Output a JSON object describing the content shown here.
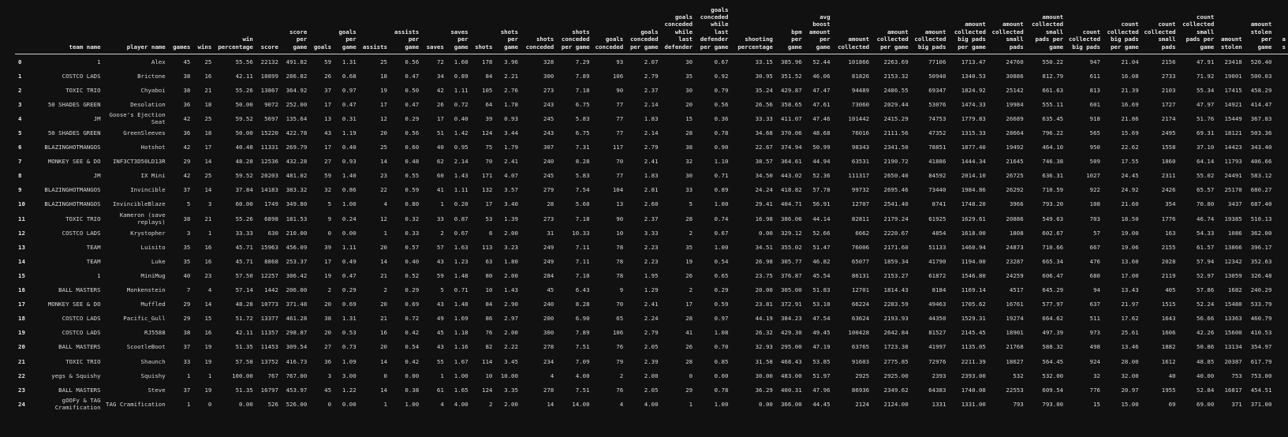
{
  "columns": [
    {
      "label": "team name",
      "w": 100
    },
    {
      "label": "player name",
      "w": 88
    },
    {
      "label": "games",
      "w": 30
    },
    {
      "label": "wins",
      "w": 25
    },
    {
      "label": "win percentage",
      "w": 49
    },
    {
      "label": "score",
      "w": 31
    },
    {
      "label": "score per game",
      "w": 35
    },
    {
      "label": "goals",
      "w": 28
    },
    {
      "label": "goals per game",
      "w": 30
    },
    {
      "label": "assists",
      "w": 36
    },
    {
      "label": "assists per game",
      "w": 38
    },
    {
      "label": "saves",
      "w": 30
    },
    {
      "label": "saves per game",
      "w": 28
    },
    {
      "label": "shots",
      "w": 28
    },
    {
      "label": "shots per game",
      "w": 32
    },
    {
      "label": "shots conceded",
      "w": 44
    },
    {
      "label": "shots conceded per game",
      "w": 44
    },
    {
      "label": "goals conceded",
      "w": 38
    },
    {
      "label": "goals conceded per game",
      "w": 42
    },
    {
      "label": "goals conceded while last defender",
      "w": 40
    },
    {
      "label": "goals conceded while last defender per game",
      "w": 44
    },
    {
      "label": "shooting percentage",
      "w": 58
    },
    {
      "label": "bpm per game",
      "w": 36
    },
    {
      "label": "avg boost amount per game",
      "w": 34
    },
    {
      "label": "amount collected",
      "w": 48
    },
    {
      "label": "amount collected per game",
      "w": 48
    },
    {
      "label": "amount collected big pads",
      "w": 44
    },
    {
      "label": "amount collected big pads per game",
      "w": 50
    },
    {
      "label": "amount collected small pads",
      "w": 44
    },
    {
      "label": "amount collected small pads per game",
      "w": 50
    },
    {
      "label": "count collected big pads",
      "w": 42
    },
    {
      "label": "count collected big pads per game",
      "w": 46
    },
    {
      "label": "count collected small pads",
      "w": 42
    },
    {
      "label": "count collected small pads per game",
      "w": 46
    },
    {
      "label": "amount stolen",
      "w": 33
    },
    {
      "label": "amount stolen per game",
      "w": 38
    },
    {
      "label": "a s",
      "w": 20
    }
  ],
  "rows": [
    {
      "idx": "0",
      "c": [
        "1",
        "Alex",
        "45",
        "25",
        "55.56",
        "22132",
        "491.82",
        "59",
        "1.31",
        "25",
        "0.56",
        "72",
        "1.60",
        "178",
        "3.96",
        "328",
        "7.29",
        "93",
        "2.07",
        "30",
        "0.67",
        "33.15",
        "385.96",
        "52.44",
        "101866",
        "2263.69",
        "77106",
        "1713.47",
        "24760",
        "550.22",
        "947",
        "21.04",
        "2156",
        "47.91",
        "23418",
        "520.40",
        ""
      ]
    },
    {
      "idx": "1",
      "c": [
        "COSTCO LADS",
        "Brictone",
        "38",
        "16",
        "42.11",
        "10899",
        "286.82",
        "26",
        "0.68",
        "18",
        "0.47",
        "34",
        "0.89",
        "84",
        "2.21",
        "300",
        "7.89",
        "106",
        "2.79",
        "35",
        "0.92",
        "30.95",
        "351.52",
        "46.06",
        "81826",
        "2153.32",
        "50940",
        "1340.53",
        "30886",
        "812.79",
        "611",
        "16.08",
        "2733",
        "71.92",
        "19001",
        "500.03",
        ""
      ]
    },
    {
      "idx": "2",
      "c": [
        "TOXIC TRIO",
        "Chyaboi",
        "38",
        "21",
        "55.26",
        "13867",
        "364.92",
        "37",
        "0.97",
        "19",
        "0.50",
        "42",
        "1.11",
        "105",
        "2.76",
        "273",
        "7.18",
        "90",
        "2.37",
        "30",
        "0.79",
        "35.24",
        "429.87",
        "47.47",
        "94489",
        "2486.55",
        "69347",
        "1824.92",
        "25142",
        "661.63",
        "813",
        "21.39",
        "2103",
        "55.34",
        "17415",
        "458.29",
        ""
      ]
    },
    {
      "idx": "3",
      "c": [
        "50 SHADES GREEN",
        "Desolation",
        "36",
        "18",
        "50.00",
        "9072",
        "252.00",
        "17",
        "0.47",
        "17",
        "0.47",
        "26",
        "0.72",
        "64",
        "1.78",
        "243",
        "6.75",
        "77",
        "2.14",
        "20",
        "0.56",
        "26.56",
        "358.65",
        "47.61",
        "73060",
        "2029.44",
        "53076",
        "1474.33",
        "19984",
        "555.11",
        "601",
        "16.69",
        "1727",
        "47.97",
        "14921",
        "414.47",
        ""
      ]
    },
    {
      "idx": "4",
      "c": [
        "JM",
        "Goose's Ejection Seat",
        "42",
        "25",
        "59.52",
        "5697",
        "135.64",
        "13",
        "0.31",
        "12",
        "0.29",
        "17",
        "0.40",
        "39",
        "0.93",
        "245",
        "5.83",
        "77",
        "1.83",
        "15",
        "0.36",
        "33.33",
        "411.07",
        "47.46",
        "101442",
        "2415.29",
        "74753",
        "1779.83",
        "26689",
        "635.45",
        "918",
        "21.86",
        "2174",
        "51.76",
        "15449",
        "367.83",
        ""
      ]
    },
    {
      "idx": "5",
      "c": [
        "50 SHADES GREEN",
        "GreenSleeves",
        "36",
        "18",
        "50.00",
        "15220",
        "422.78",
        "43",
        "1.19",
        "20",
        "0.56",
        "51",
        "1.42",
        "124",
        "3.44",
        "243",
        "6.75",
        "77",
        "2.14",
        "28",
        "0.78",
        "34.68",
        "370.06",
        "48.68",
        "76016",
        "2111.56",
        "47352",
        "1315.33",
        "28664",
        "796.22",
        "565",
        "15.69",
        "2495",
        "69.31",
        "18121",
        "503.36",
        ""
      ]
    },
    {
      "idx": "6",
      "c": [
        "BLAZINGHOTMANGOS",
        "Hotshot",
        "42",
        "17",
        "40.48",
        "11331",
        "269.79",
        "17",
        "0.40",
        "25",
        "0.60",
        "40",
        "0.95",
        "75",
        "1.79",
        "307",
        "7.31",
        "117",
        "2.79",
        "38",
        "0.90",
        "22.67",
        "374.94",
        "50.99",
        "98343",
        "2341.50",
        "78851",
        "1877.40",
        "19492",
        "464.10",
        "950",
        "22.62",
        "1558",
        "37.10",
        "14423",
        "343.40",
        ""
      ]
    },
    {
      "idx": "7",
      "c": [
        "MONKEY SEE & DO",
        "INF3CT3D50LD13R",
        "29",
        "14",
        "48.28",
        "12536",
        "432.28",
        "27",
        "0.93",
        "14",
        "0.48",
        "62",
        "2.14",
        "70",
        "2.41",
        "240",
        "8.28",
        "70",
        "2.41",
        "32",
        "1.10",
        "38.57",
        "364.61",
        "44.94",
        "63531",
        "2190.72",
        "41886",
        "1444.34",
        "21645",
        "746.38",
        "509",
        "17.55",
        "1860",
        "64.14",
        "11793",
        "406.66",
        ""
      ]
    },
    {
      "idx": "8",
      "c": [
        "JM",
        "IX Mini",
        "42",
        "25",
        "59.52",
        "20203",
        "481.02",
        "59",
        "1.40",
        "23",
        "0.55",
        "60",
        "1.43",
        "171",
        "4.07",
        "245",
        "5.83",
        "77",
        "1.83",
        "30",
        "0.71",
        "34.50",
        "443.02",
        "52.36",
        "111317",
        "2650.40",
        "84592",
        "2014.10",
        "26725",
        "636.31",
        "1027",
        "24.45",
        "2311",
        "55.02",
        "24491",
        "583.12",
        ""
      ]
    },
    {
      "idx": "9",
      "c": [
        "BLAZINGHOTMANGOS",
        "Invincible",
        "37",
        "14",
        "37.84",
        "14183",
        "383.32",
        "32",
        "0.86",
        "22",
        "0.59",
        "41",
        "1.11",
        "132",
        "3.57",
        "279",
        "7.54",
        "104",
        "2.81",
        "33",
        "0.89",
        "24.24",
        "418.82",
        "57.78",
        "99732",
        "2695.46",
        "73440",
        "1984.86",
        "26292",
        "710.59",
        "922",
        "24.92",
        "2426",
        "65.57",
        "25170",
        "680.27",
        ""
      ]
    },
    {
      "idx": "10",
      "c": [
        "BLAZINGHOTMANGOS",
        "InvincibleBlaze",
        "5",
        "3",
        "60.00",
        "1749",
        "349.80",
        "5",
        "1.00",
        "4",
        "0.80",
        "1",
        "0.20",
        "17",
        "3.40",
        "28",
        "5.60",
        "13",
        "2.60",
        "5",
        "1.00",
        "29.41",
        "404.71",
        "56.91",
        "12707",
        "2541.40",
        "8741",
        "1748.20",
        "3966",
        "793.20",
        "108",
        "21.60",
        "354",
        "70.80",
        "3437",
        "687.40",
        ""
      ]
    },
    {
      "idx": "11",
      "c": [
        "TOXIC TRIO",
        "Kameron (save replays)",
        "38",
        "21",
        "55.26",
        "6898",
        "181.53",
        "9",
        "0.24",
        "12",
        "0.32",
        "33",
        "0.87",
        "53",
        "1.39",
        "273",
        "7.18",
        "90",
        "2.37",
        "28",
        "0.74",
        "16.98",
        "386.06",
        "44.14",
        "82811",
        "2179.24",
        "61925",
        "1629.61",
        "20886",
        "549.63",
        "703",
        "18.50",
        "1776",
        "46.74",
        "19385",
        "510.13",
        ""
      ]
    },
    {
      "idx": "12",
      "c": [
        "COSTCO LADS",
        "Krystopher",
        "3",
        "1",
        "33.33",
        "630",
        "210.00",
        "0",
        "0.00",
        "1",
        "0.33",
        "2",
        "0.67",
        "6",
        "2.00",
        "31",
        "10.33",
        "10",
        "3.33",
        "2",
        "0.67",
        "0.00",
        "329.12",
        "52.66",
        "6662",
        "2220.67",
        "4854",
        "1618.00",
        "1808",
        "602.67",
        "57",
        "19.00",
        "163",
        "54.33",
        "1086",
        "362.00",
        ""
      ]
    },
    {
      "idx": "13",
      "c": [
        "TEAM",
        "Luisito",
        "35",
        "16",
        "45.71",
        "15963",
        "456.09",
        "39",
        "1.11",
        "20",
        "0.57",
        "57",
        "1.63",
        "113",
        "3.23",
        "249",
        "7.11",
        "78",
        "2.23",
        "35",
        "1.00",
        "34.51",
        "355.02",
        "51.47",
        "76006",
        "2171.60",
        "51133",
        "1460.94",
        "24873",
        "710.66",
        "667",
        "19.06",
        "2155",
        "61.57",
        "13866",
        "396.17",
        ""
      ]
    },
    {
      "idx": "14",
      "c": [
        "TEAM",
        "Luke",
        "35",
        "16",
        "45.71",
        "8868",
        "253.37",
        "17",
        "0.49",
        "14",
        "0.40",
        "43",
        "1.23",
        "63",
        "1.80",
        "249",
        "7.11",
        "78",
        "2.23",
        "19",
        "0.54",
        "26.98",
        "305.77",
        "46.82",
        "65077",
        "1859.34",
        "41790",
        "1194.00",
        "23287",
        "665.34",
        "476",
        "13.60",
        "2028",
        "57.94",
        "12342",
        "352.63",
        ""
      ]
    },
    {
      "idx": "15",
      "c": [
        "1",
        "MiniMug",
        "40",
        "23",
        "57.50",
        "12257",
        "306.42",
        "19",
        "0.47",
        "21",
        "0.52",
        "59",
        "1.48",
        "80",
        "2.00",
        "284",
        "7.10",
        "78",
        "1.95",
        "26",
        "0.65",
        "23.75",
        "376.87",
        "45.54",
        "86131",
        "2153.27",
        "61872",
        "1546.80",
        "24259",
        "606.47",
        "680",
        "17.00",
        "2119",
        "52.97",
        "13059",
        "326.48",
        ""
      ]
    },
    {
      "idx": "16",
      "c": [
        "BALL MASTERS",
        "Monkenstein",
        "7",
        "4",
        "57.14",
        "1442",
        "206.00",
        "2",
        "0.29",
        "2",
        "0.29",
        "5",
        "0.71",
        "10",
        "1.43",
        "45",
        "6.43",
        "9",
        "1.29",
        "2",
        "0.29",
        "20.00",
        "305.00",
        "51.83",
        "12701",
        "1814.43",
        "8184",
        "1169.14",
        "4517",
        "645.29",
        "94",
        "13.43",
        "405",
        "57.86",
        "1682",
        "240.29",
        ""
      ]
    },
    {
      "idx": "17",
      "c": [
        "MONKEY SEE & DO",
        "Muffled",
        "29",
        "14",
        "48.28",
        "10773",
        "371.48",
        "20",
        "0.69",
        "20",
        "0.69",
        "43",
        "1.48",
        "84",
        "2.90",
        "240",
        "8.28",
        "70",
        "2.41",
        "17",
        "0.59",
        "23.81",
        "372.91",
        "53.10",
        "66224",
        "2283.59",
        "49463",
        "1705.62",
        "16761",
        "577.97",
        "637",
        "21.97",
        "1515",
        "52.24",
        "15480",
        "533.79",
        ""
      ]
    },
    {
      "idx": "18",
      "c": [
        "COSTCO LADS",
        "Pacific_Gull",
        "29",
        "15",
        "51.72",
        "13377",
        "461.28",
        "38",
        "1.31",
        "21",
        "0.72",
        "49",
        "1.69",
        "86",
        "2.97",
        "200",
        "6.90",
        "65",
        "2.24",
        "28",
        "0.97",
        "44.19",
        "384.23",
        "47.54",
        "63624",
        "2193.93",
        "44350",
        "1529.31",
        "19274",
        "664.62",
        "511",
        "17.62",
        "1643",
        "56.66",
        "13363",
        "460.79",
        ""
      ]
    },
    {
      "idx": "19",
      "c": [
        "COSTCO LADS",
        "RJ5588",
        "38",
        "16",
        "42.11",
        "11357",
        "298.87",
        "20",
        "0.53",
        "16",
        "0.42",
        "45",
        "1.18",
        "76",
        "2.00",
        "300",
        "7.89",
        "106",
        "2.79",
        "41",
        "1.08",
        "26.32",
        "429.30",
        "49.45",
        "100428",
        "2642.84",
        "81527",
        "2145.45",
        "18901",
        "497.39",
        "973",
        "25.61",
        "1606",
        "42.26",
        "15600",
        "410.53",
        ""
      ]
    },
    {
      "idx": "20",
      "c": [
        "BALL MASTERS",
        "ScootleBoot",
        "37",
        "19",
        "51.35",
        "11453",
        "309.54",
        "27",
        "0.73",
        "20",
        "0.54",
        "43",
        "1.16",
        "82",
        "2.22",
        "278",
        "7.51",
        "76",
        "2.05",
        "26",
        "0.70",
        "32.93",
        "295.00",
        "47.19",
        "63765",
        "1723.38",
        "41997",
        "1135.05",
        "21768",
        "588.32",
        "498",
        "13.46",
        "1882",
        "50.86",
        "13134",
        "354.97",
        ""
      ]
    },
    {
      "idx": "21",
      "c": [
        "TOXIC TRIO",
        "Shaunch",
        "33",
        "19",
        "57.58",
        "13752",
        "416.73",
        "36",
        "1.09",
        "14",
        "0.42",
        "55",
        "1.67",
        "114",
        "3.45",
        "234",
        "7.09",
        "79",
        "2.39",
        "28",
        "0.85",
        "31.58",
        "468.43",
        "53.85",
        "91603",
        "2775.85",
        "72976",
        "2211.39",
        "18627",
        "564.45",
        "924",
        "28.00",
        "1612",
        "48.85",
        "20387",
        "617.79",
        ""
      ]
    },
    {
      "idx": "22",
      "c": [
        "yegs & Squishy",
        "Squishy",
        "1",
        "1",
        "100.00",
        "767",
        "767.00",
        "3",
        "3.00",
        "0",
        "0.00",
        "1",
        "1.00",
        "10",
        "10.00",
        "4",
        "4.00",
        "2",
        "2.00",
        "0",
        "0.00",
        "30.00",
        "483.00",
        "51.97",
        "2925",
        "2925.00",
        "2393",
        "2393.00",
        "532",
        "532.00",
        "32",
        "32.00",
        "40",
        "40.00",
        "753",
        "753.00",
        ""
      ]
    },
    {
      "idx": "23",
      "c": [
        "BALL MASTERS",
        "Steve",
        "37",
        "19",
        "51.35",
        "16797",
        "453.97",
        "45",
        "1.22",
        "14",
        "0.38",
        "61",
        "1.65",
        "124",
        "3.35",
        "278",
        "7.51",
        "76",
        "2.05",
        "29",
        "0.78",
        "36.29",
        "400.31",
        "47.96",
        "86936",
        "2349.62",
        "64383",
        "1740.08",
        "22553",
        "609.54",
        "776",
        "20.97",
        "1955",
        "52.84",
        "16817",
        "454.51",
        ""
      ]
    },
    {
      "idx": "24",
      "c": [
        "gOOFy & TAG Cramification",
        "TAG Cramification",
        "1",
        "0",
        "0.00",
        "526",
        "526.00",
        "0",
        "0.00",
        "1",
        "1.00",
        "4",
        "4.00",
        "2",
        "2.00",
        "14",
        "14.00",
        "4",
        "4.00",
        "1",
        "1.00",
        "0.00",
        "366.00",
        "44.45",
        "2124",
        "2124.00",
        "1331",
        "1331.00",
        "793",
        "793.00",
        "15",
        "15.00",
        "69",
        "69.00",
        "371",
        "371.00",
        ""
      ]
    }
  ]
}
